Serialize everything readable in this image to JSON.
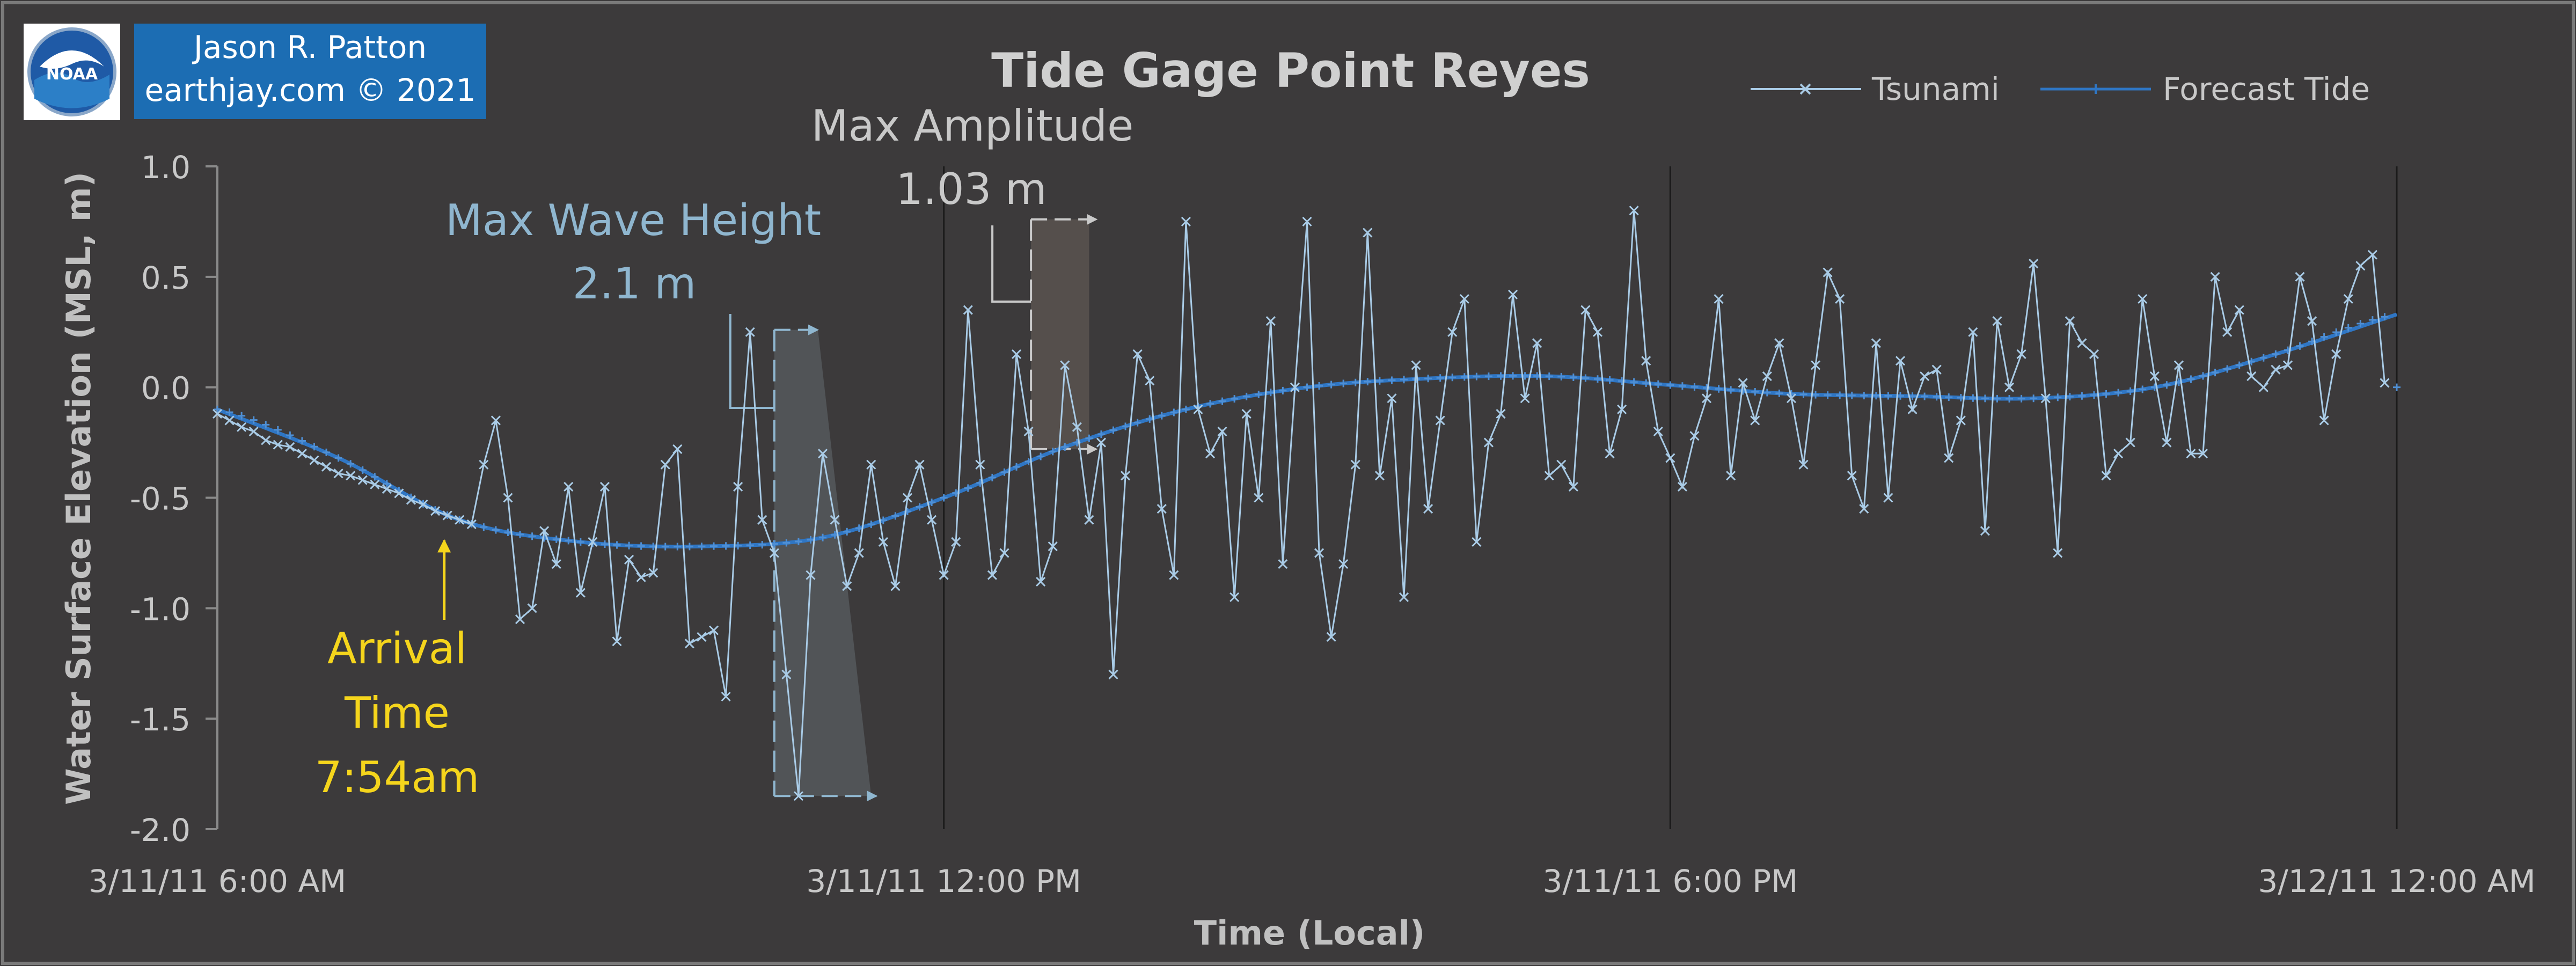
{
  "credit": {
    "author": "Jason R. Patton",
    "site": "earthjay.com © 2021"
  },
  "logo": {
    "name": "noaa-logo",
    "text": "NOAA"
  },
  "colors": {
    "background": "#3c3a3b",
    "tsunami": "#a9cbe6",
    "forecast": "#2f76c4",
    "wave_annotation": "#8fb6cf",
    "amplitude_annotation": "#c9c9c9",
    "arrival": "#f5d51c",
    "axis_text": "#c8c8c8",
    "credit_bg": "#1c6db3"
  },
  "annotations": {
    "arrival": {
      "line1": "Arrival",
      "line2": "Time",
      "line3": "7:54am",
      "time_hours": 7.9,
      "value": -0.62
    },
    "max_wave_height": {
      "label": "Max Wave Height",
      "value_label": "2.1 m",
      "t_start": 10.6,
      "t_end": 11.4,
      "top": 0.26,
      "bottom": -1.85
    },
    "max_amplitude": {
      "label": "Max Amplitude",
      "value_label": "1.03 m",
      "t_start": 12.72,
      "t_end": 13.2,
      "top": 0.76,
      "bottom": -0.28
    }
  },
  "chart_data": {
    "type": "line",
    "title": "Tide Gage Point Reyes",
    "xlabel": "Time (Local)",
    "ylabel": "Water Surface Elevation (MSL, m)",
    "ylim": [
      -2.0,
      1.0
    ],
    "xlim_hours": [
      6,
      24
    ],
    "x_tick_hours": [
      6,
      12,
      18,
      24
    ],
    "x_tick_labels": [
      "3/11/11 6:00 AM",
      "3/11/11 12:00 PM",
      "3/11/11 6:00 PM",
      "3/12/11 12:00 AM"
    ],
    "y_ticks": [
      1.0,
      0.5,
      0.0,
      -0.5,
      -1.0,
      -1.5,
      -2.0
    ],
    "y_tick_labels": [
      "1.0",
      "0.5",
      "0.0",
      "-0.5",
      "-1.0",
      "-1.5",
      "-2.0"
    ],
    "gridlines_x": [
      12,
      18,
      24
    ],
    "legend_position": "top-right",
    "series": [
      {
        "name": "Tsunami",
        "marker": "x",
        "x_start_hour": 6,
        "x_step_hours": 0.1,
        "values": [
          -0.12,
          -0.15,
          -0.18,
          -0.2,
          -0.24,
          -0.26,
          -0.27,
          -0.3,
          -0.33,
          -0.36,
          -0.39,
          -0.4,
          -0.42,
          -0.44,
          -0.46,
          -0.48,
          -0.51,
          -0.53,
          -0.56,
          -0.58,
          -0.6,
          -0.62,
          -0.35,
          -0.15,
          -0.5,
          -1.05,
          -1.0,
          -0.65,
          -0.8,
          -0.45,
          -0.93,
          -0.7,
          -0.45,
          -1.15,
          -0.78,
          -0.86,
          -0.84,
          -0.35,
          -0.28,
          -1.16,
          -1.13,
          -1.1,
          -1.4,
          -0.45,
          0.25,
          -0.6,
          -0.75,
          -1.3,
          -1.85,
          -0.85,
          -0.3,
          -0.6,
          -0.9,
          -0.75,
          -0.35,
          -0.7,
          -0.9,
          -0.5,
          -0.35,
          -0.6,
          -0.85,
          -0.7,
          0.35,
          -0.35,
          -0.85,
          -0.75,
          0.15,
          -0.2,
          -0.88,
          -0.72,
          0.1,
          -0.18,
          -0.6,
          -0.25,
          -1.3,
          -0.4,
          0.15,
          0.03,
          -0.55,
          -0.85,
          0.75,
          -0.1,
          -0.3,
          -0.2,
          -0.95,
          -0.12,
          -0.5,
          0.3,
          -0.8,
          0.0,
          0.75,
          -0.75,
          -1.13,
          -0.8,
          -0.35,
          0.7,
          -0.4,
          -0.05,
          -0.95,
          0.1,
          -0.55,
          -0.15,
          0.25,
          0.4,
          -0.7,
          -0.25,
          -0.12,
          0.42,
          -0.05,
          0.2,
          -0.4,
          -0.35,
          -0.45,
          0.35,
          0.25,
          -0.3,
          -0.1,
          0.8,
          0.12,
          -0.2,
          -0.32,
          -0.45,
          -0.22,
          -0.05,
          0.4,
          -0.4,
          0.02,
          -0.15,
          0.05,
          0.2,
          -0.05,
          -0.35,
          0.1,
          0.52,
          0.4,
          -0.4,
          -0.55,
          0.2,
          -0.5,
          0.12,
          -0.1,
          0.05,
          0.08,
          -0.32,
          -0.15,
          0.25,
          -0.65,
          0.3,
          0.0,
          0.15,
          0.56,
          -0.05,
          -0.75,
          0.3,
          0.2,
          0.15,
          -0.4,
          -0.3,
          -0.25,
          0.4,
          0.05,
          -0.25,
          0.1,
          -0.3,
          -0.3,
          0.5,
          0.25,
          0.35,
          0.05,
          0.0,
          0.08,
          0.1,
          0.5,
          0.3,
          -0.15,
          0.15,
          0.4,
          0.55,
          0.6,
          0.02
        ]
      },
      {
        "name": "Forecast Tide",
        "marker": "+",
        "tide_points": [
          [
            6,
            -0.1
          ],
          [
            7,
            -0.32
          ],
          [
            8,
            -0.6
          ],
          [
            9,
            -0.7
          ],
          [
            10,
            -0.72
          ],
          [
            11,
            -0.68
          ],
          [
            12,
            -0.5
          ],
          [
            13,
            -0.27
          ],
          [
            14,
            -0.1
          ],
          [
            15,
            0.0
          ],
          [
            16,
            0.04
          ],
          [
            17,
            0.05
          ],
          [
            18,
            0.01
          ],
          [
            19,
            -0.03
          ],
          [
            20,
            -0.04
          ],
          [
            21,
            -0.05
          ],
          [
            22,
            0.0
          ],
          [
            23,
            0.15
          ],
          [
            24,
            0.33
          ]
        ]
      }
    ]
  }
}
